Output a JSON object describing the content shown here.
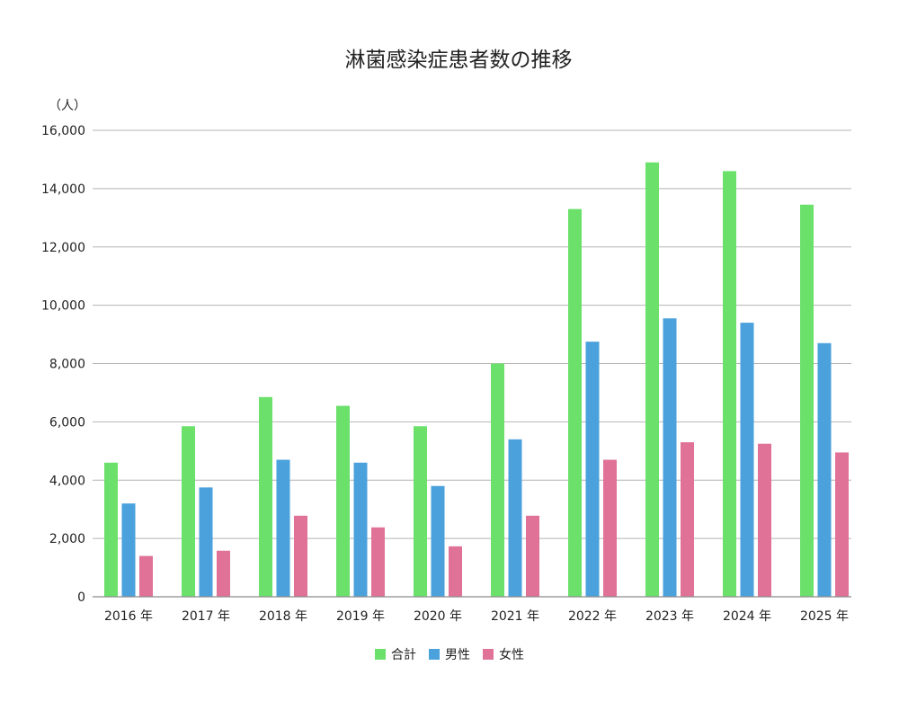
{
  "chart_data": {
    "type": "bar",
    "title": "淋菌感染症患者数の推移",
    "ylabel": "（人）",
    "xlabel": "",
    "categories": [
      "2016 年",
      "2017 年",
      "2018 年",
      "2019 年",
      "2020 年",
      "2021 年",
      "2022 年",
      "2023 年",
      "2024 年",
      "2025 年"
    ],
    "series": [
      {
        "name": "合計",
        "color": "#6be06b",
        "values": [
          4600,
          5850,
          6850,
          6550,
          5850,
          8000,
          13300,
          14900,
          14600,
          13450
        ]
      },
      {
        "name": "男性",
        "color": "#4aa1dc",
        "values": [
          3200,
          3750,
          4700,
          4600,
          3800,
          5400,
          8750,
          9550,
          9400,
          8700
        ]
      },
      {
        "name": "女性",
        "color": "#e07297",
        "values": [
          1400,
          1580,
          2780,
          2380,
          1730,
          2780,
          4700,
          5300,
          5250,
          4950
        ]
      }
    ],
    "ylim": [
      0,
      16000
    ],
    "yticks": [
      0,
      2000,
      4000,
      6000,
      8000,
      10000,
      12000,
      14000,
      16000
    ],
    "ytick_labels": [
      "0",
      "2,000",
      "4,000",
      "6,000",
      "8,000",
      "10,000",
      "12,000",
      "14,000",
      "16,000"
    ],
    "grid": true,
    "legend_position": "bottom-center"
  }
}
